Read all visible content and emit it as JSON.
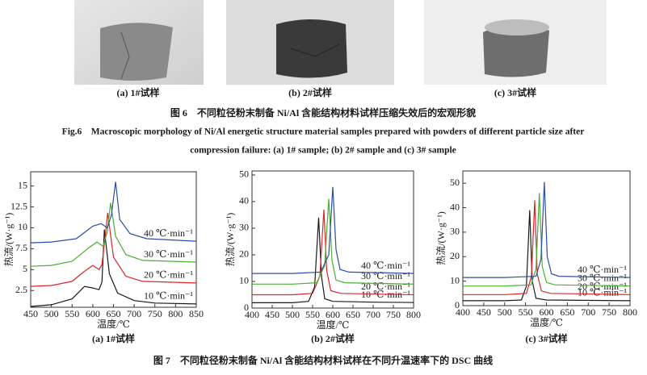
{
  "figure6": {
    "photo_captions": [
      "(a) 1#试样",
      "(b) 2#试样",
      "(c) 3#试样"
    ],
    "caption_cn": "图 6　不同粒径粉末制备 Ni/Al 含能结构材料试样压缩失效后的宏观形貌",
    "caption_en": [
      "Fig.6　Macroscopic morphology of Ni/Al energetic structure material samples prepared with powders of different particle size after",
      "compression failure: (a) 1# sample; (b) 2# sample and (c) 3# sample"
    ]
  },
  "chart_data": [
    {
      "type": "line",
      "xlabel": "温度/℃",
      "ylabel": "热流/(W·g⁻¹)",
      "caption": "(a) 1#试样",
      "xlim": [
        450,
        850
      ],
      "ylim": [
        0.5,
        16.7
      ],
      "xticks": [
        450,
        500,
        550,
        600,
        650,
        700,
        750,
        800,
        850
      ],
      "yticks": [
        2.5,
        5,
        7.5,
        10,
        12.5,
        15
      ],
      "series": [
        {
          "name": "10 ℃·min⁻¹",
          "color": "#1a1a1a",
          "x": [
            450,
            500,
            550,
            570,
            580,
            600,
            615,
            622,
            628,
            640,
            660,
            700,
            750,
            850
          ],
          "values": [
            0.6,
            0.8,
            1.5,
            2.5,
            3.0,
            2.8,
            2.6,
            3.5,
            9.8,
            4.5,
            2.2,
            1.3,
            1.0,
            0.9
          ]
        },
        {
          "name": "20 ℃·min⁻¹",
          "color": "#d8262a",
          "x": [
            450,
            500,
            550,
            580,
            600,
            615,
            622,
            630,
            636,
            650,
            680,
            720,
            850
          ],
          "values": [
            3,
            3.1,
            3.6,
            4.8,
            5.5,
            5.0,
            5.6,
            9,
            11.8,
            6.5,
            4.2,
            3.6,
            3.4
          ]
        },
        {
          "name": "30 ℃·min⁻¹",
          "color": "#4cae34",
          "x": [
            450,
            500,
            550,
            590,
            610,
            625,
            635,
            643,
            655,
            680,
            720,
            850
          ],
          "values": [
            5.4,
            5.5,
            6.0,
            7.6,
            8.3,
            7.8,
            9.5,
            13,
            9,
            6.8,
            6.1,
            5.9
          ]
        },
        {
          "name": "40 ℃·min⁻¹",
          "color": "#2b4fa2",
          "x": [
            450,
            500,
            560,
            600,
            620,
            635,
            645,
            655,
            665,
            690,
            730,
            850
          ],
          "values": [
            8.2,
            8.3,
            8.7,
            10.2,
            10.5,
            10.0,
            11.5,
            15.5,
            11,
            9.3,
            8.7,
            8.4
          ]
        }
      ]
    },
    {
      "type": "line",
      "xlabel": "温度/℃",
      "ylabel": "热流/(W·g⁻¹)",
      "caption": "(b) 2#试样",
      "xlim": [
        400,
        800
      ],
      "ylim": [
        0,
        51.5
      ],
      "xticks": [
        400,
        450,
        500,
        550,
        600,
        650,
        700,
        750,
        800
      ],
      "yticks": [
        0,
        10,
        20,
        30,
        40,
        50
      ],
      "series": [
        {
          "name": "10 ℃·min⁻¹",
          "color": "#1a1a1a",
          "x": [
            400,
            500,
            540,
            555,
            565,
            572,
            580,
            600,
            700,
            800
          ],
          "values": [
            2,
            2,
            2.5,
            8,
            34,
            12,
            3.5,
            2.5,
            2.2,
            2.1
          ]
        },
        {
          "name": "20 ℃·min⁻¹",
          "color": "#d8262a",
          "x": [
            400,
            500,
            550,
            568,
            578,
            585,
            595,
            620,
            800
          ],
          "values": [
            5,
            5,
            5.5,
            12,
            37,
            14,
            6.5,
            5.5,
            5
          ]
        },
        {
          "name": "30 ℃·min⁻¹",
          "color": "#4cae34",
          "x": [
            400,
            500,
            560,
            580,
            590,
            598,
            608,
            630,
            800
          ],
          "values": [
            9,
            9,
            9.5,
            16,
            41,
            18,
            10.5,
            9.5,
            9
          ]
        },
        {
          "name": "40 ℃·min⁻¹",
          "color": "#2b4fa2",
          "x": [
            400,
            500,
            570,
            590,
            600,
            608,
            618,
            640,
            800
          ],
          "values": [
            13,
            13,
            13.5,
            20,
            45.5,
            22,
            14.5,
            13.5,
            13
          ]
        }
      ]
    },
    {
      "type": "line",
      "xlabel": "温度/℃",
      "ylabel": "热流/(W·g⁻¹)",
      "caption": "(c) 3#试样",
      "xlim": [
        400,
        800
      ],
      "ylim": [
        0,
        55
      ],
      "xticks": [
        400,
        450,
        500,
        550,
        600,
        650,
        700,
        750,
        800
      ],
      "yticks": [
        0,
        10,
        20,
        30,
        40,
        50
      ],
      "series": [
        {
          "name": "10 ℃·min⁻¹",
          "color": "#1a1a1a",
          "x": [
            400,
            500,
            540,
            552,
            560,
            566,
            575,
            600,
            800
          ],
          "values": [
            2,
            2,
            2.3,
            8,
            39,
            10,
            3,
            2.3,
            2
          ]
        },
        {
          "name": "20 ℃·min⁻¹",
          "color": "#d8262a",
          "x": [
            400,
            500,
            552,
            564,
            572,
            578,
            588,
            610,
            800
          ],
          "values": [
            4.5,
            4.5,
            5,
            12,
            43,
            13,
            6,
            5,
            4.5
          ]
        },
        {
          "name": "30 ℃·min⁻¹",
          "color": "#4cae34",
          "x": [
            400,
            500,
            563,
            575,
            583,
            590,
            600,
            620,
            800
          ],
          "values": [
            8,
            8,
            8.5,
            15,
            46,
            16,
            9.5,
            8.5,
            8
          ]
        },
        {
          "name": "40 ℃·min⁻¹",
          "color": "#2b4fa2",
          "x": [
            400,
            500,
            575,
            587,
            595,
            602,
            612,
            630,
            800
          ],
          "values": [
            11.5,
            11.5,
            12,
            19,
            50.5,
            20,
            13,
            12,
            11.5
          ]
        }
      ]
    }
  ],
  "figure7": {
    "caption_cn": "图 7　不同粒径粉末制备 Ni/Al 含能结构材料试样在不同升温速率下的 DSC 曲线"
  }
}
